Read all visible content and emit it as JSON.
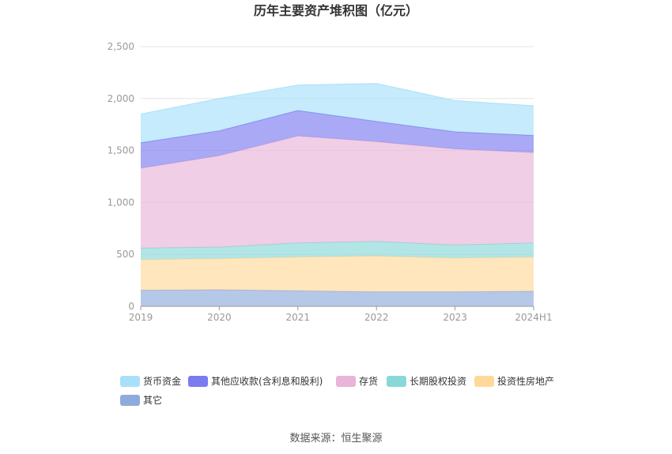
{
  "chart_data": {
    "type": "area",
    "stacked": true,
    "title": "历年主要资产堆积图（亿元）",
    "categories": [
      "2019",
      "2020",
      "2021",
      "2022",
      "2023",
      "2024H1"
    ],
    "ylim": [
      0,
      2500
    ],
    "yticks": [
      "0",
      "500",
      "1,000",
      "1,500",
      "2,000",
      "2,500"
    ],
    "ytick_values": [
      0,
      500,
      1000,
      1500,
      2000,
      2500
    ],
    "grid": true,
    "legend_position": "bottom",
    "series": [
      {
        "name": "其它",
        "color": "#8FAADC",
        "values": [
          155,
          160,
          150,
          140,
          140,
          145
        ]
      },
      {
        "name": "投资性房地产",
        "color": "#FFD99A",
        "values": [
          295,
          300,
          325,
          345,
          325,
          330
        ]
      },
      {
        "name": "长期股权投资",
        "color": "#88D8D8",
        "values": [
          110,
          110,
          135,
          140,
          125,
          135
        ]
      },
      {
        "name": "存货",
        "color": "#E8B4D8",
        "values": [
          770,
          880,
          1030,
          960,
          925,
          870
        ]
      },
      {
        "name": "其他应收款(含利息和股利)",
        "color": "#7B7BF0",
        "values": [
          245,
          240,
          245,
          195,
          165,
          165
        ]
      },
      {
        "name": "货币资金",
        "color": "#A8E0FA",
        "values": [
          275,
          310,
          245,
          365,
          300,
          285
        ]
      }
    ],
    "legend_order": [
      "货币资金",
      "其他应收款(含利息和股利)",
      "存货",
      "长期股权投资",
      "投资性房地产",
      "其它"
    ]
  },
  "source_note": "数据来源：恒生聚源"
}
